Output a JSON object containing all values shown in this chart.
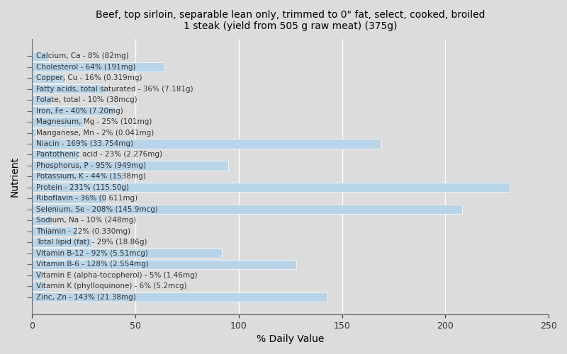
{
  "title": "Beef, top sirloin, separable lean only, trimmed to 0\" fat, select, cooked, broiled\n1 steak (yield from 505 g raw meat) (375g)",
  "xlabel": "% Daily Value",
  "ylabel": "Nutrient",
  "background_color": "#dcdcdc",
  "plot_bg_color": "#dcdcdc",
  "bar_color": "#b8d4e8",
  "xlim": [
    0,
    250
  ],
  "xticks": [
    0,
    50,
    100,
    150,
    200,
    250
  ],
  "nutrients": [
    "Calcium, Ca - 8% (82mg)",
    "Cholesterol - 64% (191mg)",
    "Copper, Cu - 16% (0.319mg)",
    "Fatty acids, total saturated - 36% (7.181g)",
    "Folate, total - 10% (38mcg)",
    "Iron, Fe - 40% (7.20mg)",
    "Magnesium, Mg - 25% (101mg)",
    "Manganese, Mn - 2% (0.041mg)",
    "Niacin - 169% (33.754mg)",
    "Pantothenic acid - 23% (2.276mg)",
    "Phosphorus, P - 95% (949mg)",
    "Potassium, K - 44% (1538mg)",
    "Protein - 231% (115.50g)",
    "Riboflavin - 36% (0.611mg)",
    "Selenium, Se - 208% (145.9mcg)",
    "Sodium, Na - 10% (248mg)",
    "Thiamin - 22% (0.330mg)",
    "Total lipid (fat) - 29% (18.86g)",
    "Vitamin B-12 - 92% (5.51mcg)",
    "Vitamin B-6 - 128% (2.554mg)",
    "Vitamin E (alpha-tocopherol) - 5% (1.46mg)",
    "Vitamin K (phylloquinone) - 6% (5.2mcg)",
    "Zinc, Zn - 143% (21.38mg)"
  ],
  "values": [
    8,
    64,
    16,
    36,
    10,
    40,
    25,
    2,
    169,
    23,
    95,
    44,
    231,
    36,
    208,
    10,
    22,
    29,
    92,
    128,
    5,
    6,
    143
  ],
  "text_color": "#333333",
  "label_fontsize": 7.5
}
